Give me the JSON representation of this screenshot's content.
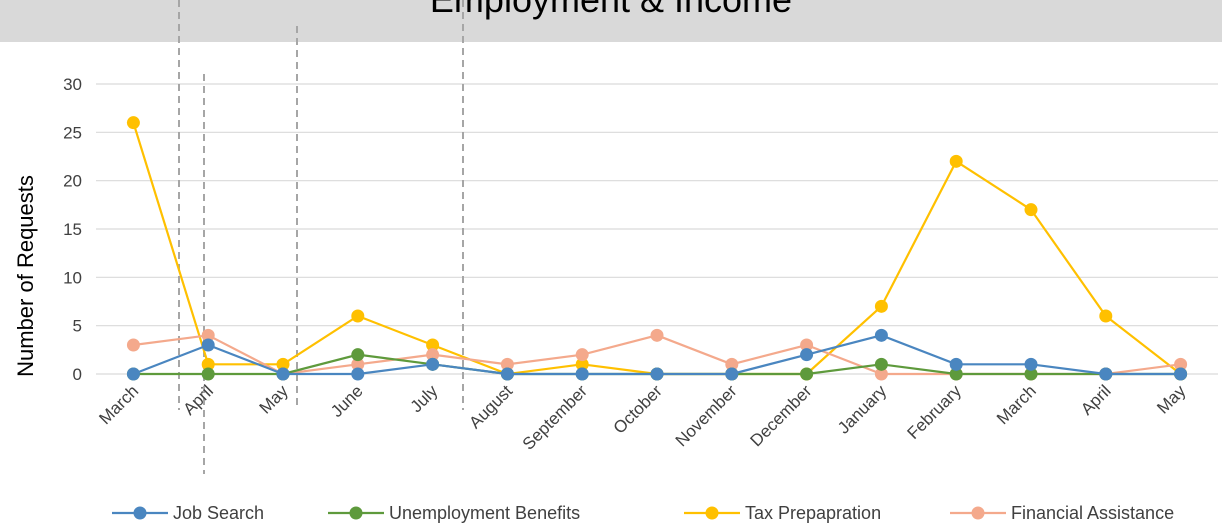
{
  "chart_data": {
    "type": "line",
    "title": "Employment & Income",
    "xlabel": "",
    "ylabel": "Number of Requests",
    "ylim": [
      0,
      30
    ],
    "yticks": [
      0,
      5,
      10,
      15,
      20,
      25,
      30
    ],
    "grid": true,
    "legend_position": "bottom",
    "categories": [
      "March",
      "April",
      "May",
      "June",
      "July",
      "August",
      "September",
      "October",
      "November",
      "December",
      "January",
      "February",
      "March",
      "April",
      "May"
    ],
    "series": [
      {
        "name": "Job Search",
        "color": "#4a86c0",
        "values": [
          0,
          3,
          0,
          0,
          1,
          0,
          0,
          0,
          0,
          2,
          4,
          1,
          1,
          0,
          0
        ]
      },
      {
        "name": "Unemployment Benefits",
        "color": "#5e9a3c",
        "values": [
          0,
          0,
          0,
          2,
          1,
          0,
          0,
          0,
          0,
          0,
          1,
          0,
          0,
          0,
          0
        ]
      },
      {
        "name": "Tax Prepapration",
        "color": "#ffc000",
        "values": [
          26,
          1,
          1,
          6,
          3,
          0,
          1,
          0,
          0,
          0,
          7,
          22,
          17,
          6,
          0
        ]
      },
      {
        "name": "Financial Assistance",
        "color": "#f4a98c",
        "values": [
          3,
          4,
          0,
          1,
          2,
          1,
          2,
          4,
          1,
          3,
          0,
          0,
          0,
          0,
          1
        ]
      }
    ]
  }
}
